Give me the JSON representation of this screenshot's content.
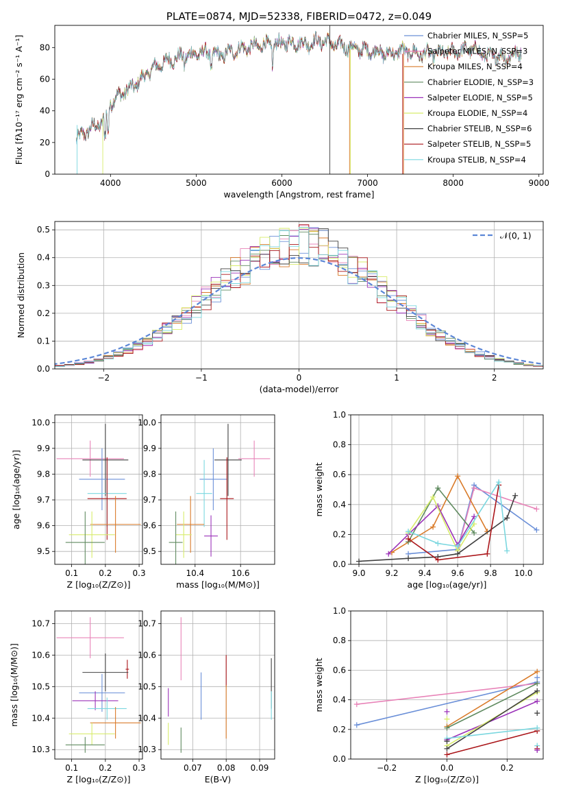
{
  "colors": {
    "chabrier_miles": "#6a8fd8",
    "salpeter_miles": "#e883b8",
    "kroupa_miles": "#d97a28",
    "chabrier_elodie": "#5f8a5f",
    "salpeter_elodie": "#9a30b8",
    "kroupa_elodie": "#d7ec6a",
    "chabrier_stelib": "#404040",
    "salpeter_stelib": "#aa1418",
    "kroupa_stelib": "#7ad7df",
    "normal": "#5b86d6",
    "grid": "#b0b0b0"
  },
  "chart_data": [
    {
      "id": "spectrum",
      "type": "line",
      "title": "PLATE=0874, MJD=52338, FIBERID=0472, z=0.049",
      "xlabel": "wavelength [Angstrom, rest frame]",
      "ylabel": "Flux [fλ10⁻¹⁷ erg cm⁻² s⁻¹ A⁻¹]",
      "xlim": [
        3350,
        9050
      ],
      "ylim": [
        0,
        94
      ],
      "xticks": [
        4000,
        5000,
        6000,
        7000,
        8000,
        9000
      ],
      "yticks": [
        0,
        20,
        40,
        60,
        80
      ],
      "legend_position": "upper-right",
      "continuum": {
        "x": [
          3600,
          3700,
          3800,
          3900,
          3950,
          4000,
          4100,
          4200,
          4300,
          4400,
          4500,
          4600,
          4700,
          4800,
          4900,
          5000,
          5100,
          5200,
          5300,
          5400,
          5500,
          5600,
          5700,
          5800,
          5900,
          6000,
          6100,
          6200,
          6300,
          6400,
          6500,
          6600,
          6700,
          6800,
          6900,
          7000,
          7100,
          7200,
          7300,
          7400,
          7500,
          7600,
          7700,
          7800,
          7900,
          8000,
          8100,
          8200,
          8300,
          8400,
          8500,
          8600,
          8700,
          8800
        ],
        "y": [
          22,
          26,
          30,
          33,
          36,
          45,
          50,
          53,
          57,
          62,
          67,
          70,
          72,
          74,
          75,
          76,
          77,
          76,
          75,
          77,
          79,
          80,
          81,
          82,
          81,
          83,
          83,
          83,
          82,
          84,
          84,
          82,
          81,
          80,
          79,
          78,
          78,
          76,
          76,
          78,
          77,
          76,
          76,
          76,
          77,
          77,
          78,
          79,
          78,
          74,
          75,
          74,
          75,
          78
        ]
      },
      "series": [
        {
          "name": "Chabrier MILES, N_SSP=5",
          "key": "chabrier_miles"
        },
        {
          "name": "Salpeter MILES, N_SSP=3",
          "key": "salpeter_miles"
        },
        {
          "name": "Kroupa MILES, N_SSP=4",
          "key": "kroupa_miles"
        },
        {
          "name": "Chabrier ELODIE, N_SSP=3",
          "key": "chabrier_elodie"
        },
        {
          "name": "Salpeter ELODIE, N_SSP=5",
          "key": "salpeter_elodie"
        },
        {
          "name": "Kroupa ELODIE, N_SSP=4",
          "key": "kroupa_elodie"
        },
        {
          "name": "Chabrier STELIB, N_SSP=6",
          "key": "chabrier_stelib"
        },
        {
          "name": "Salpeter STELIB, N_SSP=5",
          "key": "salpeter_stelib"
        },
        {
          "name": "Kroupa STELIB, N_SSP=4",
          "key": "kroupa_stelib"
        }
      ]
    },
    {
      "id": "residuals",
      "type": "line",
      "xlabel": "(data-model)/error",
      "ylabel": "Normed distribution",
      "xlim": [
        -2.5,
        2.5
      ],
      "ylim": [
        0,
        0.53
      ],
      "xticks": [
        -2,
        -1,
        0,
        1,
        2
      ],
      "yticks": [
        0.0,
        0.1,
        0.2,
        0.3,
        0.4,
        0.5
      ],
      "legend": "𝒩(0, 1)",
      "legend_position": "upper-right",
      "grid": true
    },
    {
      "id": "age_vs_z",
      "type": "scatter",
      "xlabel": "Z [log₁₀(Z/Z⊙)]",
      "ylabel": "age [log₁₀(age/yr)]",
      "xlim": [
        0.05,
        0.31
      ],
      "ylim": [
        9.45,
        10.03
      ],
      "xticks": [
        0.1,
        0.2,
        0.3
      ],
      "yticks": [
        9.5,
        9.6,
        9.7,
        9.8,
        9.9,
        10.0
      ],
      "grid": true,
      "points": [
        {
          "key": "salpeter_miles",
          "x": 0.155,
          "y": 9.86,
          "xerr": 0.1,
          "yerr": 0.07
        },
        {
          "key": "chabrier_stelib",
          "x": 0.2,
          "y": 9.855,
          "xerr": 0.068,
          "yerr": 0.14
        },
        {
          "key": "chabrier_miles",
          "x": 0.19,
          "y": 9.78,
          "xerr": 0.068,
          "yerr": 0.12
        },
        {
          "key": "kroupa_stelib",
          "x": 0.205,
          "y": 9.725,
          "xerr": 0.058,
          "yerr": 0.13
        },
        {
          "key": "salpeter_stelib",
          "x": 0.205,
          "y": 9.705,
          "xerr": 0.058,
          "yerr": 0.16
        },
        {
          "key": "kroupa_miles",
          "x": 0.23,
          "y": 9.605,
          "xerr": 0.075,
          "yerr": 0.11
        },
        {
          "key": "kroupa_elodie",
          "x": 0.16,
          "y": 9.565,
          "xerr": 0.068,
          "yerr": 0.09
        },
        {
          "key": "chabrier_elodie",
          "x": 0.14,
          "y": 9.535,
          "xerr": 0.058,
          "yerr": 0.12
        }
      ]
    },
    {
      "id": "age_vs_mass",
      "type": "scatter",
      "xlabel": "mass [log₁₀(M/M⊙)]",
      "xlim": [
        10.25,
        10.75
      ],
      "ylim": [
        9.45,
        10.03
      ],
      "xticks": [
        10.4,
        10.6
      ],
      "yticks": [
        9.5,
        9.6,
        9.7,
        9.8,
        9.9,
        10.0
      ],
      "grid": true,
      "points": [
        {
          "key": "salpeter_miles",
          "x": 10.66,
          "y": 9.86,
          "xerr": 0.07,
          "yerr": 0.07
        },
        {
          "key": "chabrier_stelib",
          "x": 10.545,
          "y": 9.855,
          "xerr": 0.06,
          "yerr": 0.14
        },
        {
          "key": "chabrier_miles",
          "x": 10.48,
          "y": 9.78,
          "xerr": 0.06,
          "yerr": 0.12
        },
        {
          "key": "kroupa_stelib",
          "x": 10.44,
          "y": 9.725,
          "xerr": 0.035,
          "yerr": 0.13
        },
        {
          "key": "salpeter_stelib",
          "x": 10.54,
          "y": 9.705,
          "xerr": 0.03,
          "yerr": 0.16
        },
        {
          "key": "kroupa_miles",
          "x": 10.38,
          "y": 9.605,
          "xerr": 0.06,
          "yerr": 0.11
        },
        {
          "key": "kroupa_elodie",
          "x": 10.35,
          "y": 9.565,
          "xerr": 0.035,
          "yerr": 0.09
        },
        {
          "key": "chabrier_elodie",
          "x": 10.315,
          "y": 9.535,
          "xerr": 0.03,
          "yerr": 0.12
        },
        {
          "key": "salpeter_elodie",
          "x": 10.47,
          "y": 9.56,
          "xerr": 0.03,
          "yerr": 0.08
        }
      ]
    },
    {
      "id": "weight_vs_age",
      "type": "line",
      "xlabel": "age [log₁₀(age/yr)]",
      "ylabel": "mass weight",
      "xlim": [
        8.95,
        10.12
      ],
      "ylim": [
        0,
        1.0
      ],
      "xticks": [
        9.0,
        9.2,
        9.4,
        9.6,
        9.8,
        10.0
      ],
      "yticks": [
        0.0,
        0.2,
        0.4,
        0.6,
        0.8,
        1.0
      ],
      "grid": true,
      "series": [
        {
          "key": "chabrier_miles",
          "x": [
            9.3,
            9.6,
            9.7,
            10.08
          ],
          "y": [
            0.07,
            0.1,
            0.53,
            0.23
          ]
        },
        {
          "key": "salpeter_miles",
          "x": [
            9.6,
            9.7,
            10.08
          ],
          "y": [
            0.09,
            0.51,
            0.37
          ]
        },
        {
          "key": "kroupa_miles",
          "x": [
            9.2,
            9.45,
            9.6,
            9.78
          ],
          "y": [
            0.08,
            0.25,
            0.59,
            0.22
          ]
        },
        {
          "key": "chabrier_elodie",
          "x": [
            9.3,
            9.48,
            9.7
          ],
          "y": [
            0.15,
            0.51,
            0.21
          ]
        },
        {
          "key": "salpeter_elodie",
          "x": [
            9.18,
            9.3,
            9.48,
            9.6,
            9.7
          ],
          "y": [
            0.07,
            0.2,
            0.39,
            0.13,
            0.32
          ]
        },
        {
          "key": "kroupa_elodie",
          "x": [
            9.3,
            9.45,
            9.6,
            9.7
          ],
          "y": [
            0.21,
            0.45,
            0.09,
            0.27
          ]
        },
        {
          "key": "chabrier_stelib",
          "x": [
            9.0,
            9.3,
            9.48,
            9.6,
            9.9,
            9.95
          ],
          "y": [
            0.02,
            0.04,
            0.05,
            0.07,
            0.31,
            0.46
          ]
        },
        {
          "key": "salpeter_stelib",
          "x": [
            9.3,
            9.48,
            9.78,
            9.85
          ],
          "y": [
            0.17,
            0.03,
            0.07,
            0.53
          ]
        },
        {
          "key": "kroupa_stelib",
          "x": [
            9.3,
            9.48,
            9.6,
            9.85,
            9.9
          ],
          "y": [
            0.22,
            0.14,
            0.12,
            0.55,
            0.09
          ]
        }
      ]
    },
    {
      "id": "mass_vs_z",
      "type": "scatter",
      "xlabel": "Z [log₁₀(Z/Z⊙)]",
      "ylabel": "mass [log₁₀(M/M⊙)]",
      "xlim": [
        0.05,
        0.31
      ],
      "ylim": [
        10.27,
        10.74
      ],
      "xticks": [
        0.1,
        0.2,
        0.3
      ],
      "yticks": [
        10.3,
        10.4,
        10.5,
        10.6,
        10.7
      ],
      "grid": true,
      "points": [
        {
          "key": "salpeter_miles",
          "x": 0.155,
          "y": 10.655,
          "xerr": 0.1,
          "yerr": 0.065
        },
        {
          "key": "salpeter_stelib",
          "x": 0.265,
          "y": 10.555,
          "xerr": 0.005,
          "yerr": 0.03
        },
        {
          "key": "chabrier_stelib",
          "x": 0.2,
          "y": 10.545,
          "xerr": 0.068,
          "yerr": 0.06
        },
        {
          "key": "chabrier_miles",
          "x": 0.19,
          "y": 10.48,
          "xerr": 0.068,
          "yerr": 0.06
        },
        {
          "key": "salpeter_elodie",
          "x": 0.17,
          "y": 10.455,
          "xerr": 0.068,
          "yerr": 0.03
        },
        {
          "key": "kroupa_stelib",
          "x": 0.205,
          "y": 10.43,
          "xerr": 0.058,
          "yerr": 0.035
        },
        {
          "key": "kroupa_miles",
          "x": 0.23,
          "y": 10.385,
          "xerr": 0.075,
          "yerr": 0.05
        },
        {
          "key": "kroupa_elodie",
          "x": 0.16,
          "y": 10.35,
          "xerr": 0.068,
          "yerr": 0.035
        },
        {
          "key": "chabrier_elodie",
          "x": 0.14,
          "y": 10.315,
          "xerr": 0.058,
          "yerr": 0.025
        }
      ]
    },
    {
      "id": "mass_vs_ebv",
      "type": "scatter",
      "xlabel": "E(B-V)",
      "xlim": [
        0.0605,
        0.0945
      ],
      "ylim": [
        10.27,
        10.74
      ],
      "xticks": [
        0.07,
        0.08,
        0.09
      ],
      "yticks": [
        10.3,
        10.4,
        10.5,
        10.6,
        10.7
      ],
      "grid": true,
      "points": [
        {
          "key": "salpeter_miles",
          "x": 0.0665,
          "y": 10.62,
          "yerr": 0.1
        },
        {
          "key": "salpeter_stelib",
          "x": 0.08,
          "y": 10.55,
          "yerr": 0.05
        },
        {
          "key": "chabrier_stelib",
          "x": 0.0935,
          "y": 10.51,
          "yerr": 0.08
        },
        {
          "key": "chabrier_miles",
          "x": 0.0725,
          "y": 10.47,
          "yerr": 0.075
        },
        {
          "key": "salpeter_elodie",
          "x": 0.0627,
          "y": 10.45,
          "yerr": 0.045
        },
        {
          "key": "kroupa_stelib",
          "x": 0.0935,
          "y": 10.44,
          "yerr": 0.045
        },
        {
          "key": "kroupa_miles",
          "x": 0.08,
          "y": 10.42,
          "yerr": 0.085
        },
        {
          "key": "kroupa_elodie",
          "x": 0.0627,
          "y": 10.35,
          "yerr": 0.035
        },
        {
          "key": "chabrier_elodie",
          "x": 0.0665,
          "y": 10.33,
          "yerr": 0.04
        }
      ]
    },
    {
      "id": "weight_vs_z",
      "type": "line",
      "xlabel": "Z [log₁₀(Z/Z⊙)]",
      "ylabel": "mass weight",
      "xlim": [
        -0.32,
        0.32
      ],
      "ylim": [
        0,
        1.0
      ],
      "xticks": [
        -0.2,
        0.0,
        0.2
      ],
      "yticks": [
        0.0,
        0.2,
        0.4,
        0.6,
        0.8,
        1.0
      ],
      "grid": true,
      "series": [
        {
          "key": "chabrier_miles",
          "x": [
            -0.3,
            0.3
          ],
          "y": [
            0.23,
            0.52
          ]
        },
        {
          "key": "salpeter_miles",
          "x": [
            -0.3,
            0.3
          ],
          "y": [
            0.37,
            0.51
          ]
        },
        {
          "key": "kroupa_miles",
          "x": [
            0.0,
            0.3
          ],
          "y": [
            0.22,
            0.59
          ]
        },
        {
          "key": "chabrier_elodie",
          "x": [
            0.0,
            0.3
          ],
          "y": [
            0.21,
            0.51
          ]
        },
        {
          "key": "salpeter_elodie",
          "x": [
            0.0,
            0.3
          ],
          "y": [
            0.13,
            0.39
          ]
        },
        {
          "key": "kroupa_elodie",
          "x": [
            0.0,
            0.3
          ],
          "y": [
            0.09,
            0.45
          ]
        },
        {
          "key": "chabrier_stelib",
          "x": [
            0.0,
            0.3
          ],
          "y": [
            0.07,
            0.46
          ]
        },
        {
          "key": "salpeter_stelib",
          "x": [
            0.0,
            0.3
          ],
          "y": [
            0.03,
            0.19
          ]
        },
        {
          "key": "kroupa_stelib",
          "x": [
            0.0,
            0.3
          ],
          "y": [
            0.14,
            0.21
          ]
        }
      ],
      "extra_markers": [
        {
          "key": "salpeter_elodie",
          "x": 0.0,
          "y": 0.32
        },
        {
          "key": "kroupa_elodie",
          "x": 0.0,
          "y": 0.27
        },
        {
          "key": "chabrier_stelib",
          "x": 0.0,
          "y": 0.12
        },
        {
          "key": "kroupa_stelib",
          "x": 0.3,
          "y": 0.09
        },
        {
          "key": "chabrier_stelib",
          "x": 0.3,
          "y": 0.31
        },
        {
          "key": "salpeter_stelib",
          "x": 0.3,
          "y": 0.07
        },
        {
          "key": "chabrier_miles",
          "x": 0.3,
          "y": 0.55
        },
        {
          "key": "salpeter_elodie",
          "x": 0.3,
          "y": 0.06
        }
      ]
    }
  ]
}
